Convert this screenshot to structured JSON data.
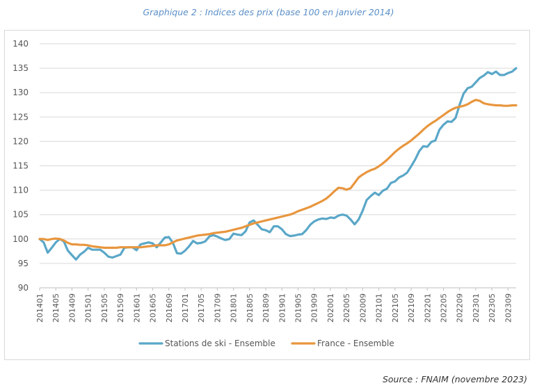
{
  "chart_data": {
    "type": "line",
    "title": "Graphique 2 : Indices des prix (base 100 en janvier 2014)",
    "source": "Source : FNAIM (novembre 2023)",
    "xlabel": "",
    "ylabel": "",
    "ylim": [
      90,
      140
    ],
    "yticks": [
      90,
      95,
      100,
      105,
      110,
      115,
      120,
      125,
      130,
      135,
      140
    ],
    "x_tick_labels": [
      "201401",
      "201405",
      "201409",
      "201501",
      "201505",
      "201509",
      "201601",
      "201605",
      "201609",
      "201701",
      "201705",
      "201709",
      "201801",
      "201805",
      "201809",
      "201901",
      "201905",
      "201909",
      "202001",
      "202005",
      "202009",
      "202101",
      "202105",
      "202109",
      "202201",
      "202205",
      "202209",
      "202301",
      "202305",
      "202309"
    ],
    "x_start": "201401",
    "x_end": "202311",
    "grid": true,
    "legend_position": "bottom",
    "series": [
      {
        "name": "Stations de ski - Ensemble",
        "color": "#5aa7c8",
        "points": [
          [
            "201401",
            100
          ],
          [
            "201402",
            99.3
          ],
          [
            "201403",
            97.2
          ],
          [
            "201404",
            98.2
          ],
          [
            "201405",
            99.3
          ],
          [
            "201406",
            100
          ],
          [
            "201407",
            99.5
          ],
          [
            "201408",
            97.6
          ],
          [
            "201409",
            96.7
          ],
          [
            "201410",
            95.8
          ],
          [
            "201411",
            96.8
          ],
          [
            "201412",
            97.4
          ],
          [
            "201501",
            98.2
          ],
          [
            "201502",
            97.8
          ],
          [
            "201503",
            97.8
          ],
          [
            "201504",
            97.8
          ],
          [
            "201505",
            97.2
          ],
          [
            "201506",
            96.4
          ],
          [
            "201507",
            96.2
          ],
          [
            "201508",
            96.5
          ],
          [
            "201509",
            96.8
          ],
          [
            "201510",
            98.2
          ],
          [
            "201511",
            98.3
          ],
          [
            "201512",
            98.3
          ],
          [
            "201601",
            97.7
          ],
          [
            "201602",
            98.9
          ],
          [
            "201603",
            99.1
          ],
          [
            "201604",
            99.3
          ],
          [
            "201605",
            99.1
          ],
          [
            "201606",
            98.3
          ],
          [
            "201607",
            99.3
          ],
          [
            "201608",
            100.3
          ],
          [
            "201609",
            100.4
          ],
          [
            "201610",
            99.2
          ],
          [
            "201611",
            97.1
          ],
          [
            "201612",
            97.0
          ],
          [
            "201701",
            97.6
          ],
          [
            "201702",
            98.5
          ],
          [
            "201703",
            99.6
          ],
          [
            "201704",
            99.1
          ],
          [
            "201705",
            99.2
          ],
          [
            "201706",
            99.5
          ],
          [
            "201707",
            100.5
          ],
          [
            "201708",
            100.8
          ],
          [
            "201709",
            100.5
          ],
          [
            "201710",
            100.1
          ],
          [
            "201711",
            99.8
          ],
          [
            "201712",
            100.0
          ],
          [
            "201801",
            101.1
          ],
          [
            "201802",
            100.9
          ],
          [
            "201803",
            100.8
          ],
          [
            "201804",
            101.6
          ],
          [
            "201805",
            103.4
          ],
          [
            "201806",
            103.8
          ],
          [
            "201807",
            102.9
          ],
          [
            "201808",
            102.0
          ],
          [
            "201809",
            101.8
          ],
          [
            "201810",
            101.4
          ],
          [
            "201811",
            102.6
          ],
          [
            "201812",
            102.6
          ],
          [
            "201901",
            102.0
          ],
          [
            "201902",
            101.0
          ],
          [
            "201903",
            100.6
          ],
          [
            "201904",
            100.7
          ],
          [
            "201905",
            100.9
          ],
          [
            "201906",
            101.0
          ],
          [
            "201907",
            101.8
          ],
          [
            "201908",
            102.9
          ],
          [
            "201909",
            103.6
          ],
          [
            "201910",
            104.0
          ],
          [
            "201911",
            104.2
          ],
          [
            "201912",
            104.1
          ],
          [
            "202001",
            104.4
          ],
          [
            "202002",
            104.3
          ],
          [
            "202003",
            104.8
          ],
          [
            "202004",
            105.0
          ],
          [
            "202005",
            104.8
          ],
          [
            "202006",
            104.0
          ],
          [
            "202007",
            103.0
          ],
          [
            "202008",
            104.0
          ],
          [
            "202009",
            105.8
          ],
          [
            "202010",
            108.0
          ],
          [
            "202011",
            108.8
          ],
          [
            "202012",
            109.5
          ],
          [
            "202101",
            109.0
          ],
          [
            "202102",
            109.9
          ],
          [
            "202103",
            110.3
          ],
          [
            "202104",
            111.5
          ],
          [
            "202105",
            111.8
          ],
          [
            "202106",
            112.6
          ],
          [
            "202107",
            113.0
          ],
          [
            "202108",
            113.6
          ],
          [
            "202109",
            114.9
          ],
          [
            "202110",
            116.3
          ],
          [
            "202111",
            118.0
          ],
          [
            "202112",
            119.0
          ],
          [
            "202201",
            118.9
          ],
          [
            "202202",
            119.9
          ],
          [
            "202203",
            120.2
          ],
          [
            "202204",
            122.4
          ],
          [
            "202205",
            123.4
          ],
          [
            "202206",
            124.1
          ],
          [
            "202207",
            124.0
          ],
          [
            "202208",
            124.8
          ],
          [
            "202209",
            127.5
          ],
          [
            "202210",
            129.8
          ],
          [
            "202211",
            130.9
          ],
          [
            "202212",
            131.2
          ],
          [
            "202301",
            132.1
          ],
          [
            "202302",
            133.0
          ],
          [
            "202303",
            133.5
          ],
          [
            "202304",
            134.2
          ],
          [
            "202305",
            133.8
          ],
          [
            "202306",
            134.3
          ],
          [
            "202307",
            133.6
          ],
          [
            "202308",
            133.6
          ],
          [
            "202309",
            134.0
          ],
          [
            "202310",
            134.3
          ],
          [
            "202311",
            135.0
          ]
        ]
      },
      {
        "name": "France - Ensemble",
        "color": "#e8963e",
        "points": [
          [
            "201401",
            100
          ],
          [
            "201402",
            100.0
          ],
          [
            "201403",
            99.8
          ],
          [
            "201404",
            100.0
          ],
          [
            "201405",
            100.1
          ],
          [
            "201406",
            100.0
          ],
          [
            "201407",
            99.7
          ],
          [
            "201408",
            99.2
          ],
          [
            "201409",
            98.9
          ],
          [
            "201410",
            98.9
          ],
          [
            "201411",
            98.8
          ],
          [
            "201412",
            98.8
          ],
          [
            "201501",
            98.7
          ],
          [
            "201502",
            98.5
          ],
          [
            "201503",
            98.4
          ],
          [
            "201504",
            98.3
          ],
          [
            "201505",
            98.2
          ],
          [
            "201506",
            98.2
          ],
          [
            "201507",
            98.2
          ],
          [
            "201508",
            98.2
          ],
          [
            "201509",
            98.3
          ],
          [
            "201510",
            98.3
          ],
          [
            "201511",
            98.3
          ],
          [
            "201512",
            98.3
          ],
          [
            "201601",
            98.3
          ],
          [
            "201602",
            98.3
          ],
          [
            "201603",
            98.4
          ],
          [
            "201604",
            98.5
          ],
          [
            "201605",
            98.6
          ],
          [
            "201606",
            98.7
          ],
          [
            "201607",
            98.7
          ],
          [
            "201608",
            98.7
          ],
          [
            "201609",
            98.9
          ],
          [
            "201610",
            99.3
          ],
          [
            "201611",
            99.7
          ],
          [
            "201612",
            99.9
          ],
          [
            "201701",
            100.1
          ],
          [
            "201702",
            100.3
          ],
          [
            "201703",
            100.5
          ],
          [
            "201704",
            100.7
          ],
          [
            "201705",
            100.8
          ],
          [
            "201706",
            100.9
          ],
          [
            "201707",
            101.0
          ],
          [
            "201708",
            101.2
          ],
          [
            "201709",
            101.3
          ],
          [
            "201710",
            101.4
          ],
          [
            "201711",
            101.5
          ],
          [
            "201712",
            101.7
          ],
          [
            "201801",
            101.9
          ],
          [
            "201802",
            102.1
          ],
          [
            "201803",
            102.3
          ],
          [
            "201804",
            102.6
          ],
          [
            "201805",
            102.9
          ],
          [
            "201806",
            103.2
          ],
          [
            "201807",
            103.4
          ],
          [
            "201808",
            103.6
          ],
          [
            "201809",
            103.8
          ],
          [
            "201810",
            104.0
          ],
          [
            "201811",
            104.2
          ],
          [
            "201812",
            104.4
          ],
          [
            "201901",
            104.6
          ],
          [
            "201902",
            104.8
          ],
          [
            "201903",
            105.0
          ],
          [
            "201904",
            105.3
          ],
          [
            "201905",
            105.7
          ],
          [
            "201906",
            106.0
          ],
          [
            "201907",
            106.3
          ],
          [
            "201908",
            106.6
          ],
          [
            "201909",
            107.0
          ],
          [
            "201910",
            107.4
          ],
          [
            "201911",
            107.8
          ],
          [
            "201912",
            108.3
          ],
          [
            "202001",
            109.0
          ],
          [
            "202002",
            109.8
          ],
          [
            "202003",
            110.5
          ],
          [
            "202004",
            110.4
          ],
          [
            "202005",
            110.1
          ],
          [
            "202006",
            110.4
          ],
          [
            "202007",
            111.5
          ],
          [
            "202008",
            112.6
          ],
          [
            "202009",
            113.2
          ],
          [
            "202010",
            113.7
          ],
          [
            "202011",
            114.1
          ],
          [
            "202012",
            114.4
          ],
          [
            "202101",
            114.9
          ],
          [
            "202102",
            115.5
          ],
          [
            "202103",
            116.2
          ],
          [
            "202104",
            117.0
          ],
          [
            "202105",
            117.8
          ],
          [
            "202106",
            118.5
          ],
          [
            "202107",
            119.1
          ],
          [
            "202108",
            119.6
          ],
          [
            "202109",
            120.2
          ],
          [
            "202110",
            120.9
          ],
          [
            "202111",
            121.6
          ],
          [
            "202112",
            122.4
          ],
          [
            "202201",
            123.1
          ],
          [
            "202202",
            123.7
          ],
          [
            "202203",
            124.2
          ],
          [
            "202204",
            124.8
          ],
          [
            "202205",
            125.4
          ],
          [
            "202206",
            126.0
          ],
          [
            "202207",
            126.5
          ],
          [
            "202208",
            126.9
          ],
          [
            "202209",
            127.1
          ],
          [
            "202210",
            127.3
          ],
          [
            "202211",
            127.6
          ],
          [
            "202212",
            128.1
          ],
          [
            "202301",
            128.5
          ],
          [
            "202302",
            128.3
          ],
          [
            "202303",
            127.8
          ],
          [
            "202304",
            127.6
          ],
          [
            "202305",
            127.5
          ],
          [
            "202306",
            127.4
          ],
          [
            "202307",
            127.4
          ],
          [
            "202308",
            127.3
          ],
          [
            "202309",
            127.3
          ],
          [
            "202310",
            127.4
          ],
          [
            "202311",
            127.4
          ]
        ]
      }
    ]
  }
}
